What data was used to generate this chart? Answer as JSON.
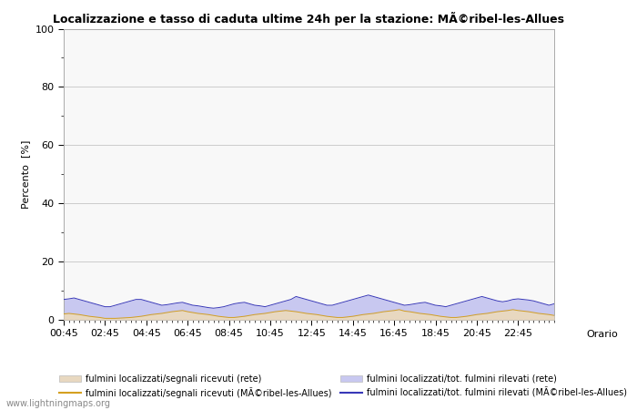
{
  "title": "Localizzazione e tasso di caduta ultime 24h per la stazione: MÃ©ribel-les-Allues",
  "ylabel": "Percento  [%]",
  "xlabel_right": "Orario",
  "watermark": "www.lightningmaps.org",
  "xlim": [
    0,
    95
  ],
  "ylim": [
    0,
    100
  ],
  "yticks": [
    0,
    20,
    40,
    60,
    80,
    100
  ],
  "yticks_minor": [
    10,
    30,
    50,
    70,
    90
  ],
  "xtick_labels": [
    "00:45",
    "02:45",
    "04:45",
    "06:45",
    "08:45",
    "10:45",
    "12:45",
    "14:45",
    "16:45",
    "18:45",
    "20:45",
    "22:45"
  ],
  "xtick_positions": [
    0,
    8,
    16,
    24,
    32,
    40,
    48,
    56,
    64,
    72,
    80,
    88
  ],
  "bg_color": "#ffffff",
  "plot_bg_color": "#f8f8f8",
  "grid_color": "#cccccc",
  "fill_rete_color": "#e8d8c0",
  "fill_blue_color": "#c8c8f0",
  "line_orange_color": "#d4a020",
  "line_blue_color": "#3838b8",
  "legend_labels": [
    "fulmini localizzati/segnali ricevuti (rete)",
    "fulmini localizzati/segnali ricevuti (MÃ©ribel-les-Allues)",
    "fulmini localizzati/tot. fulmini rilevati (rete)",
    "fulmini localizzati/tot. fulmini rilevati (MÃ©ribel-les-Allues)"
  ],
  "n_points": 96,
  "rete_fill_values": [
    2.0,
    2.2,
    2.0,
    1.8,
    1.5,
    1.2,
    1.0,
    0.8,
    0.5,
    0.5,
    0.5,
    0.6,
    0.7,
    0.8,
    1.0,
    1.2,
    1.5,
    1.8,
    2.0,
    2.2,
    2.5,
    2.8,
    3.0,
    3.2,
    2.8,
    2.5,
    2.2,
    2.0,
    1.8,
    1.5,
    1.2,
    1.0,
    0.8,
    0.8,
    1.0,
    1.2,
    1.5,
    1.8,
    2.0,
    2.2,
    2.5,
    2.8,
    3.0,
    3.2,
    3.0,
    2.8,
    2.5,
    2.2,
    2.0,
    1.8,
    1.5,
    1.2,
    1.0,
    0.8,
    0.8,
    1.0,
    1.2,
    1.5,
    1.8,
    2.0,
    2.2,
    2.5,
    2.8,
    3.0,
    3.2,
    3.5,
    3.0,
    2.8,
    2.5,
    2.2,
    2.0,
    1.8,
    1.5,
    1.2,
    1.0,
    0.8,
    0.8,
    1.0,
    1.2,
    1.5,
    1.8,
    2.0,
    2.2,
    2.5,
    2.8,
    3.0,
    3.2,
    3.5,
    3.2,
    3.0,
    2.8,
    2.5,
    2.2,
    2.0,
    1.8,
    1.5
  ],
  "blue_fill_values": [
    7.0,
    7.2,
    7.5,
    7.0,
    6.5,
    6.0,
    5.5,
    5.0,
    4.5,
    4.5,
    5.0,
    5.5,
    6.0,
    6.5,
    7.0,
    7.0,
    6.5,
    6.0,
    5.5,
    5.0,
    5.2,
    5.5,
    5.8,
    6.0,
    5.5,
    5.0,
    4.8,
    4.5,
    4.2,
    4.0,
    4.2,
    4.5,
    5.0,
    5.5,
    5.8,
    6.0,
    5.5,
    5.0,
    4.8,
    4.5,
    5.0,
    5.5,
    6.0,
    6.5,
    7.0,
    8.0,
    7.5,
    7.0,
    6.5,
    6.0,
    5.5,
    5.0,
    5.0,
    5.5,
    6.0,
    6.5,
    7.0,
    7.5,
    8.0,
    8.5,
    8.0,
    7.5,
    7.0,
    6.5,
    6.0,
    5.5,
    5.0,
    5.2,
    5.5,
    5.8,
    6.0,
    5.5,
    5.0,
    4.8,
    4.5,
    5.0,
    5.5,
    6.0,
    6.5,
    7.0,
    7.5,
    8.0,
    7.5,
    7.0,
    6.5,
    6.2,
    6.5,
    7.0,
    7.2,
    7.0,
    6.8,
    6.5,
    6.0,
    5.5,
    5.0,
    5.5
  ]
}
